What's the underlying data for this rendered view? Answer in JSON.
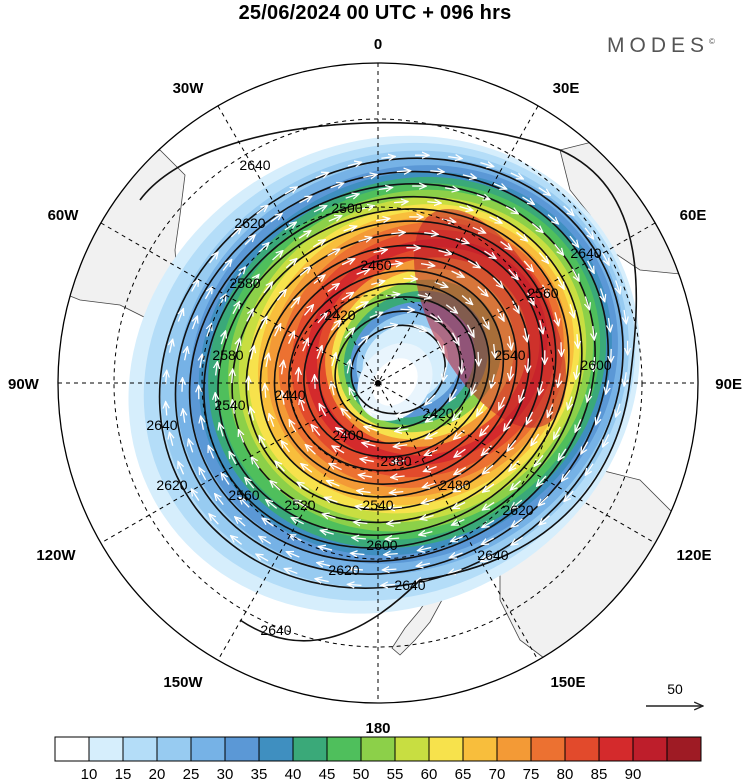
{
  "title": "25/06/2024  00 UTC  + 096 hrs",
  "brand": {
    "name": "MODES",
    "mark": "©"
  },
  "longitude_labels": {
    "top": "0",
    "bottom": "180",
    "left": "90W",
    "right": "90E",
    "30W": "30W",
    "30E": "30E",
    "60W": "60W",
    "60E": "60E",
    "120W": "120W",
    "120E": "120E",
    "150W": "150W",
    "150E": "150E"
  },
  "reference_vector": {
    "value": "50"
  },
  "contour_labels": [
    "2640",
    "2620",
    "2600",
    "2580",
    "2560",
    "2540",
    "2520",
    "2500",
    "2480",
    "2460",
    "2440",
    "2420",
    "2400",
    "2380"
  ],
  "colorbar": {
    "ticks": [
      "10",
      "15",
      "20",
      "25",
      "30",
      "35",
      "40",
      "45",
      "50",
      "55",
      "60",
      "65",
      "70",
      "75",
      "80",
      "85",
      "90"
    ],
    "colors": [
      "#ffffff",
      "#d6eefc",
      "#b4ddf8",
      "#97cbf1",
      "#76b2e6",
      "#5b98d6",
      "#3f8fc0",
      "#3aa979",
      "#4fbf5c",
      "#8cd049",
      "#c8de41",
      "#f7e24c",
      "#f8be3c",
      "#f39a36",
      "#ec7131",
      "#e24a2c",
      "#d42a2c",
      "#be1e2b",
      "#9e1b24"
    ]
  },
  "wind_speed_field": {
    "units_shown": "none",
    "max_band_value": 90,
    "jet_core_sector": "east (60E–150E)",
    "low_center": "near pole, shifted toward 90W–180",
    "min_height_label": "2380",
    "max_height_label": "2640"
  }
}
